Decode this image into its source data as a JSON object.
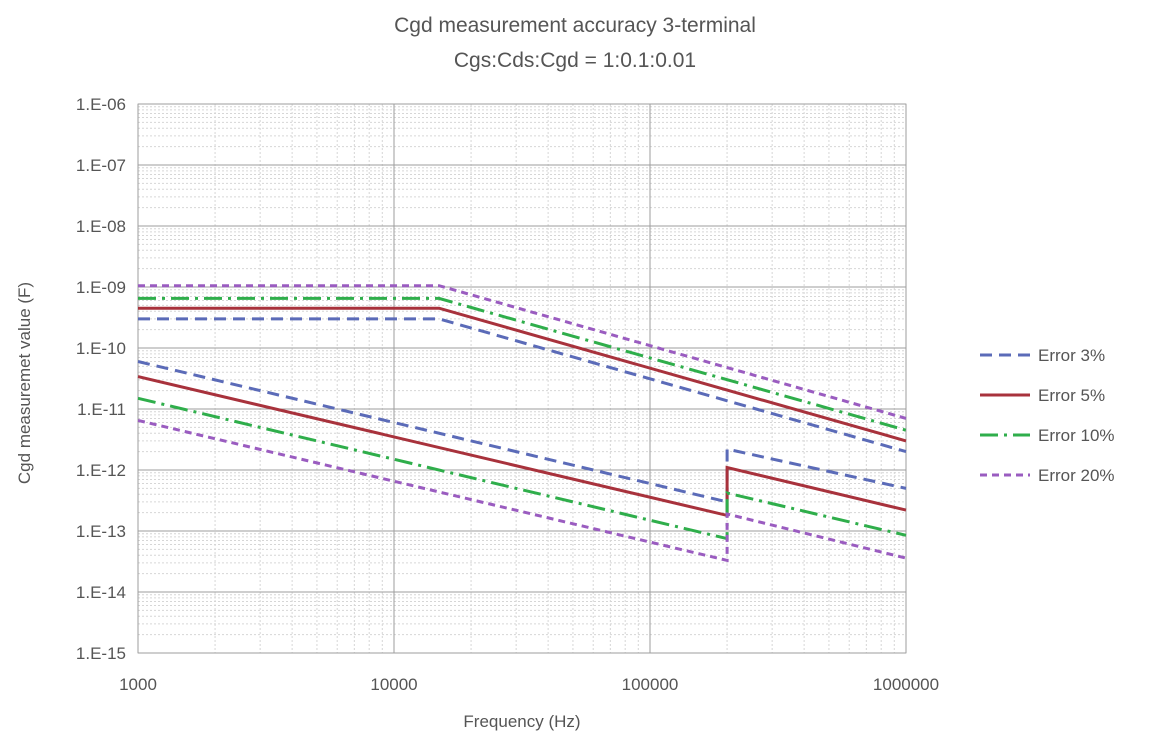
{
  "chart_data": {
    "type": "line",
    "title": "Cgd measurement accuracy 3-terminal",
    "subtitle": "Cgs:Cds:Cgd = 1:0.1:0.01",
    "xlabel": "Frequency (Hz)",
    "ylabel": "Cgd measuremet value (F)",
    "x_scale": "log",
    "y_scale": "log",
    "xlim": [
      1000,
      1000000
    ],
    "ylim": [
      1e-15,
      1e-06
    ],
    "x_ticks": [
      {
        "value": 1000,
        "label": "1000"
      },
      {
        "value": 10000,
        "label": "10000"
      },
      {
        "value": 100000,
        "label": "100000"
      },
      {
        "value": 1000000,
        "label": "1000000"
      }
    ],
    "y_ticks": [
      {
        "value": 1e-06,
        "label": "1.E-06"
      },
      {
        "value": 1e-07,
        "label": "1.E-07"
      },
      {
        "value": 1e-08,
        "label": "1.E-08"
      },
      {
        "value": 1e-09,
        "label": "1.E-09"
      },
      {
        "value": 1e-10,
        "label": "1.E-10"
      },
      {
        "value": 1e-11,
        "label": "1.E-11"
      },
      {
        "value": 1e-12,
        "label": "1.E-12"
      },
      {
        "value": 1e-13,
        "label": "1.E-13"
      },
      {
        "value": 1e-14,
        "label": "1.E-14"
      },
      {
        "value": 1e-15,
        "label": "1.E-15"
      }
    ],
    "grid": true,
    "legend_position": "right",
    "series": [
      {
        "name": "Error 3%",
        "color": "#5b6bb8",
        "dash": "dash",
        "upper": [
          [
            1000,
            3e-10
          ],
          [
            15000,
            3e-10
          ],
          [
            1000000,
            2e-12
          ]
        ],
        "lower": [
          [
            1000,
            6e-11
          ],
          [
            200000,
            3e-13
          ],
          [
            200000,
            2.2e-12
          ],
          [
            1000000,
            5e-13
          ]
        ]
      },
      {
        "name": "Error 5%",
        "color": "#a8323c",
        "dash": "solid",
        "upper": [
          [
            1000,
            4.5e-10
          ],
          [
            15000,
            4.5e-10
          ],
          [
            1000000,
            3e-12
          ]
        ],
        "lower": [
          [
            1000,
            3.4e-11
          ],
          [
            200000,
            1.8e-13
          ],
          [
            200000,
            1.1e-12
          ],
          [
            1000000,
            2.2e-13
          ]
        ]
      },
      {
        "name": "Error 10%",
        "color": "#2fae4b",
        "dash": "dashdot",
        "upper": [
          [
            1000,
            6.5e-10
          ],
          [
            15000,
            6.5e-10
          ],
          [
            1000000,
            4.5e-12
          ]
        ],
        "lower": [
          [
            1000,
            1.5e-11
          ],
          [
            200000,
            7.5e-14
          ],
          [
            200000,
            4.2e-13
          ],
          [
            1000000,
            8.5e-14
          ]
        ]
      },
      {
        "name": "Error 20%",
        "color": "#9a5cc0",
        "dash": "dot",
        "upper": [
          [
            1000,
            1.05e-09
          ],
          [
            15000,
            1.05e-09
          ],
          [
            1000000,
            7e-12
          ]
        ],
        "lower": [
          [
            1000,
            6.5e-12
          ],
          [
            200000,
            3.3e-14
          ],
          [
            200000,
            1.9e-13
          ],
          [
            1000000,
            3.6e-14
          ]
        ]
      }
    ]
  }
}
